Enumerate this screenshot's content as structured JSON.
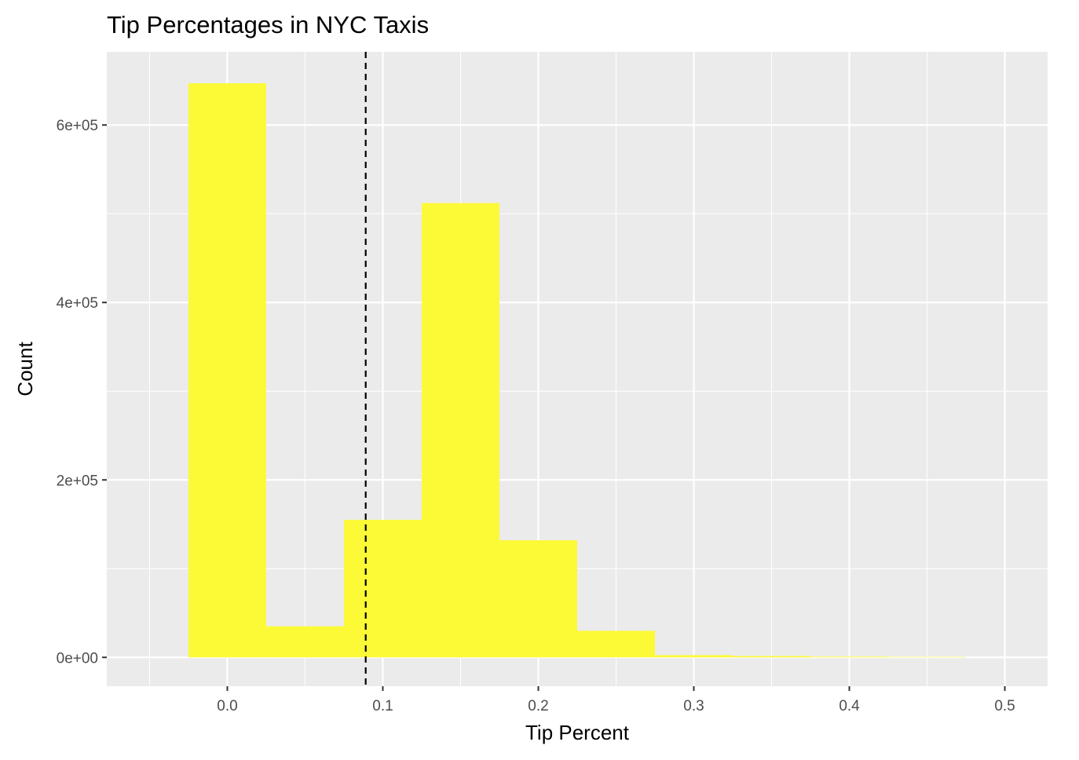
{
  "colors": {
    "panel_background": "#ebebeb",
    "grid_major": "#ffffff",
    "bar_fill": "#fcf937",
    "tick_color": "#333333",
    "reference_line": "#000000"
  },
  "chart_data": {
    "type": "bar",
    "title": "Tip Percentages in NYC Taxis",
    "xlabel": "Tip Percent",
    "ylabel": "Count",
    "xlim": [
      -0.0775,
      0.5275
    ],
    "ylim": [
      -32500,
      682500
    ],
    "x_ticks": [
      0.0,
      0.1,
      0.2,
      0.3,
      0.4,
      0.5
    ],
    "x_tick_labels": [
      "0.0",
      "0.1",
      "0.2",
      "0.3",
      "0.4",
      "0.5"
    ],
    "y_ticks": [
      0,
      200000,
      400000,
      600000
    ],
    "y_tick_labels": [
      "0e+00",
      "2e+05",
      "4e+05",
      "6e+05"
    ],
    "grid": true,
    "bin_width": 0.05,
    "bins": [
      {
        "x_start": -0.025,
        "x_end": 0.025,
        "count": 647000
      },
      {
        "x_start": 0.025,
        "x_end": 0.075,
        "count": 35000
      },
      {
        "x_start": 0.075,
        "x_end": 0.125,
        "count": 155000
      },
      {
        "x_start": 0.125,
        "x_end": 0.175,
        "count": 512000
      },
      {
        "x_start": 0.175,
        "x_end": 0.225,
        "count": 132000
      },
      {
        "x_start": 0.225,
        "x_end": 0.275,
        "count": 30000
      },
      {
        "x_start": 0.275,
        "x_end": 0.325,
        "count": 2500
      },
      {
        "x_start": 0.325,
        "x_end": 0.375,
        "count": 1500
      },
      {
        "x_start": 0.375,
        "x_end": 0.425,
        "count": 800
      },
      {
        "x_start": 0.425,
        "x_end": 0.475,
        "count": 500
      }
    ],
    "reference_line": {
      "x": 0.089,
      "style": "dashed"
    }
  }
}
